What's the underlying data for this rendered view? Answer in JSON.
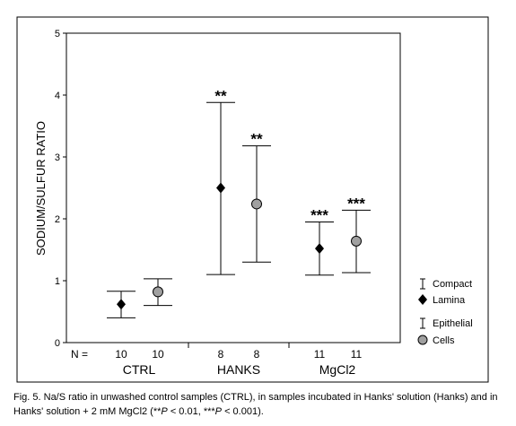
{
  "chart_data": {
    "type": "scatter",
    "ylabel": "SODIUM/SULFUR RATIO",
    "ylim": [
      0,
      5
    ],
    "yticks": [
      "0",
      "1",
      "2",
      "3",
      "4",
      "5"
    ],
    "n_label": "N =",
    "groups": [
      "CTRL",
      "HANKS",
      "MgCl2"
    ],
    "series": [
      {
        "name": "Lamina",
        "layer": "Compact",
        "marker": "diamond",
        "color": "#000000",
        "n": [
          "10",
          "8",
          "11"
        ],
        "values": [
          0.62,
          2.5,
          1.52
        ],
        "lower": [
          0.4,
          1.1,
          1.09
        ],
        "upper": [
          0.83,
          3.88,
          1.95
        ],
        "significance": [
          "",
          "**",
          "***"
        ]
      },
      {
        "name": "Cells",
        "layer": "Epithelial",
        "marker": "circle",
        "color": "#a0a0a0",
        "n": [
          "10",
          "8",
          "11"
        ],
        "values": [
          0.82,
          2.24,
          1.64
        ],
        "lower": [
          0.6,
          1.3,
          1.13
        ],
        "upper": [
          1.03,
          3.18,
          2.14
        ],
        "significance": [
          "",
          "**",
          "***"
        ]
      }
    ],
    "legend": {
      "placement": "right",
      "entries": [
        "Compact",
        "Lamina",
        "Epithelial",
        "Cells"
      ]
    }
  },
  "caption": {
    "prefix": "Fig. 5.  Na/S ratio in unwashed control samples (CTRL), in samples incubated in Hanks' solution (Hanks) and in Hanks' solution + 2 mM MgCl2 (**",
    "p1": "P",
    "mid": " < 0.01, ***",
    "p2": "P",
    "suffix": " < 0.001)."
  }
}
